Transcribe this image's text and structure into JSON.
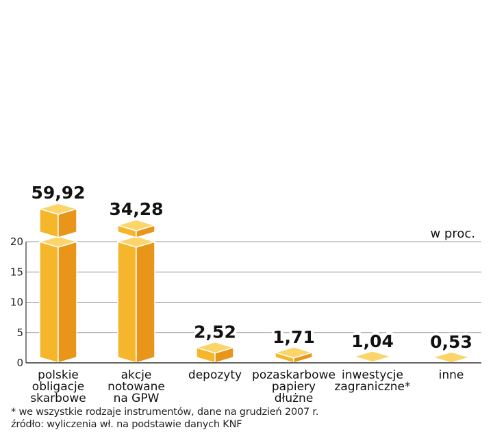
{
  "chart_data": {
    "type": "bar",
    "unit_label": "w proc.",
    "categories": [
      [
        "polskie",
        "obligacje",
        "skarbowe"
      ],
      [
        "akcje",
        "notowane",
        "na GPW"
      ],
      [
        "depozyty"
      ],
      [
        "pozaskarbowe",
        "papiery",
        "dłużne"
      ],
      [
        "inwestycje",
        "zagraniczne*"
      ],
      [
        "inne"
      ]
    ],
    "values": [
      59.92,
      34.28,
      2.52,
      1.71,
      1.04,
      0.53
    ],
    "value_labels": [
      "59,92",
      "34,28",
      "2,52",
      "1,71",
      "1,04",
      "0,53"
    ],
    "y_ticks": [
      0,
      5,
      10,
      15,
      20
    ],
    "ylim": [
      0,
      20
    ],
    "axis_break": true,
    "grid": true,
    "colors": {
      "bar_front": "#f5b62c",
      "bar_side": "#e8951a",
      "bar_top": "#fbd46a",
      "bar_edge": "#ffffff",
      "grid": "#9a9a9a",
      "axis": "#333333"
    }
  },
  "footnotes": {
    "note": "* we wszystkie rodzaje instrumentów, dane na grudzień 2007 r.",
    "source": "źródło: wyliczenia wł. na podstawie danych KNF"
  }
}
